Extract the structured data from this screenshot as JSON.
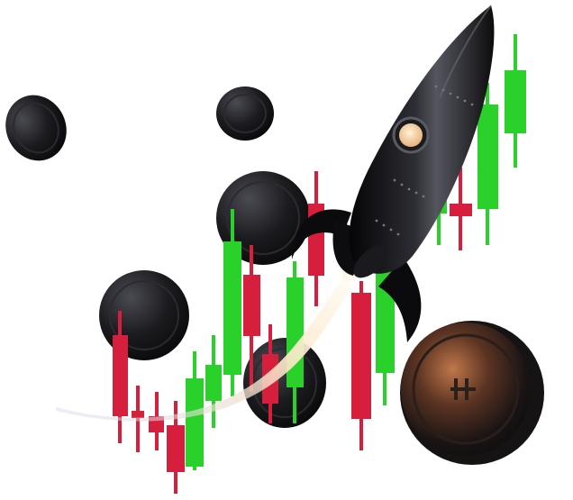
{
  "scene": {
    "colors": {
      "background": "#ffffff",
      "bull": "#2bd12b",
      "bear": "#d61f3c",
      "coin": "#1b1b1f",
      "coin_edge": "#3a3a40",
      "rocket": "#101012",
      "rocket_highlight": "#4a4a55",
      "flame": "#fff3e0",
      "porthole": "#ffe0b5",
      "copper": "#b26a3a"
    },
    "icons": [
      "rocket-icon",
      "coin-icon",
      "candlestick-icon",
      "exhaust-trail-icon"
    ]
  }
}
